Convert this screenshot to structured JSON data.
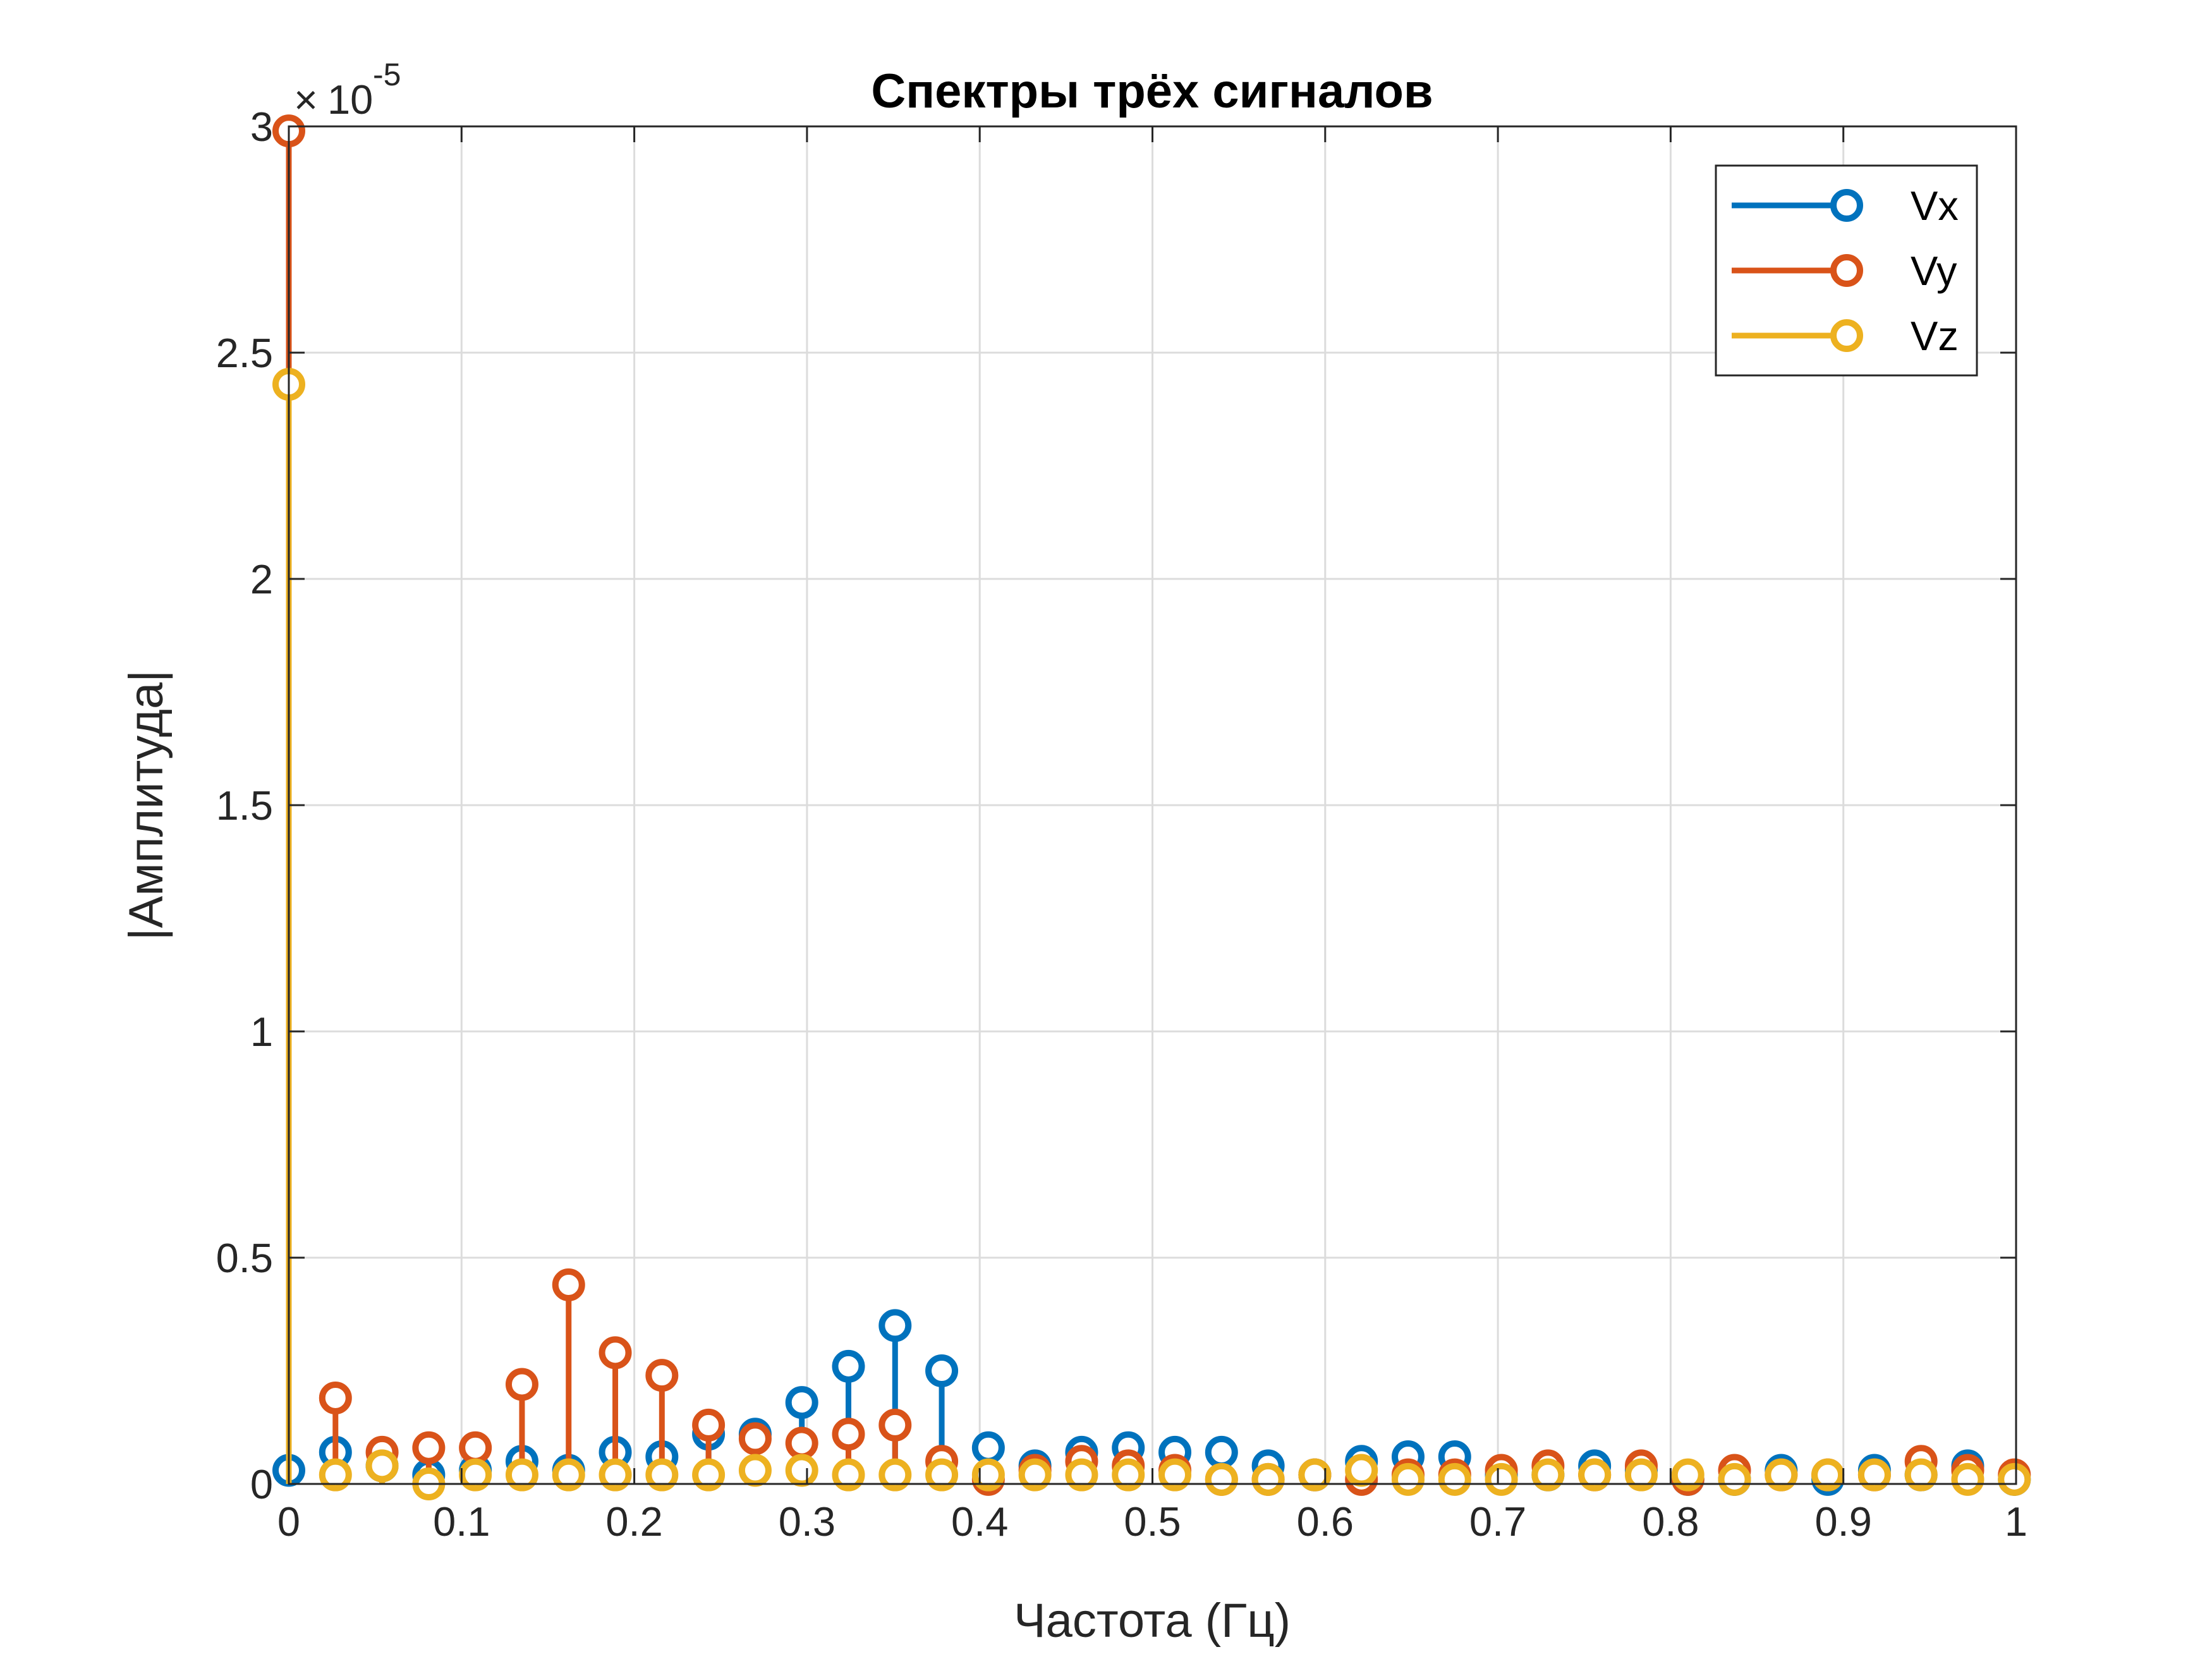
{
  "chart_data": {
    "type": "stem",
    "title": "Спектры трёх сигналов",
    "xlabel": "Частота (Гц)",
    "ylabel": "|Амплитуда|",
    "exponent_base": "10",
    "exponent_power": "-5",
    "exponent_sign": "×",
    "xlim": [
      0,
      1
    ],
    "ylim": [
      0,
      3
    ],
    "x_ticks": [
      "0",
      "0.1",
      "0.2",
      "0.3",
      "0.4",
      "0.5",
      "0.6",
      "0.7",
      "0.8",
      "0.9",
      "1"
    ],
    "y_ticks": [
      "0",
      "0.5",
      "1",
      "1.5",
      "2",
      "2.5",
      "3"
    ],
    "grid": true,
    "legend_position": "top-right",
    "x": [
      0,
      0.027,
      0.054,
      0.081,
      0.108,
      0.135,
      0.162,
      0.189,
      0.216,
      0.243,
      0.27,
      0.297,
      0.324,
      0.351,
      0.378,
      0.405,
      0.432,
      0.459,
      0.486,
      0.513,
      0.54,
      0.567,
      0.594,
      0.621,
      0.648,
      0.675,
      0.702,
      0.729,
      0.756,
      0.783,
      0.81,
      0.837,
      0.864,
      0.891,
      0.918,
      0.945,
      0.972,
      0.999
    ],
    "series": [
      {
        "name": "Vx",
        "color": "#0072BD",
        "values": [
          0.03,
          0.07,
          0.04,
          0.02,
          0.03,
          0.05,
          0.03,
          0.07,
          0.06,
          0.11,
          0.11,
          0.18,
          0.26,
          0.35,
          0.25,
          0.08,
          0.04,
          0.07,
          0.08,
          0.07,
          0.07,
          0.04,
          0.02,
          0.05,
          0.06,
          0.06,
          0.02,
          0.02,
          0.04,
          0.03,
          0.01,
          0.01,
          0.03,
          0.01,
          0.03,
          0.02,
          0.04,
          0.01
        ]
      },
      {
        "name": "Vy",
        "color": "#D95319",
        "values": [
          2.99,
          0.19,
          0.07,
          0.08,
          0.08,
          0.22,
          0.44,
          0.29,
          0.24,
          0.13,
          0.1,
          0.09,
          0.11,
          0.13,
          0.05,
          0.01,
          0.03,
          0.05,
          0.04,
          0.03,
          0.01,
          0.01,
          0.02,
          0.01,
          0.02,
          0.02,
          0.03,
          0.04,
          0.02,
          0.04,
          0.01,
          0.03,
          0.02,
          0.02,
          0.02,
          0.05,
          0.03,
          0.02
        ]
      },
      {
        "name": "Vz",
        "color": "#EDB120",
        "values": [
          2.43,
          0.02,
          0.04,
          0.0,
          0.02,
          0.02,
          0.02,
          0.02,
          0.02,
          0.02,
          0.03,
          0.03,
          0.02,
          0.02,
          0.02,
          0.02,
          0.02,
          0.02,
          0.02,
          0.02,
          0.01,
          0.01,
          0.02,
          0.03,
          0.01,
          0.01,
          0.01,
          0.02,
          0.02,
          0.02,
          0.02,
          0.01,
          0.02,
          0.02,
          0.02,
          0.02,
          0.01,
          0.01
        ]
      }
    ]
  }
}
